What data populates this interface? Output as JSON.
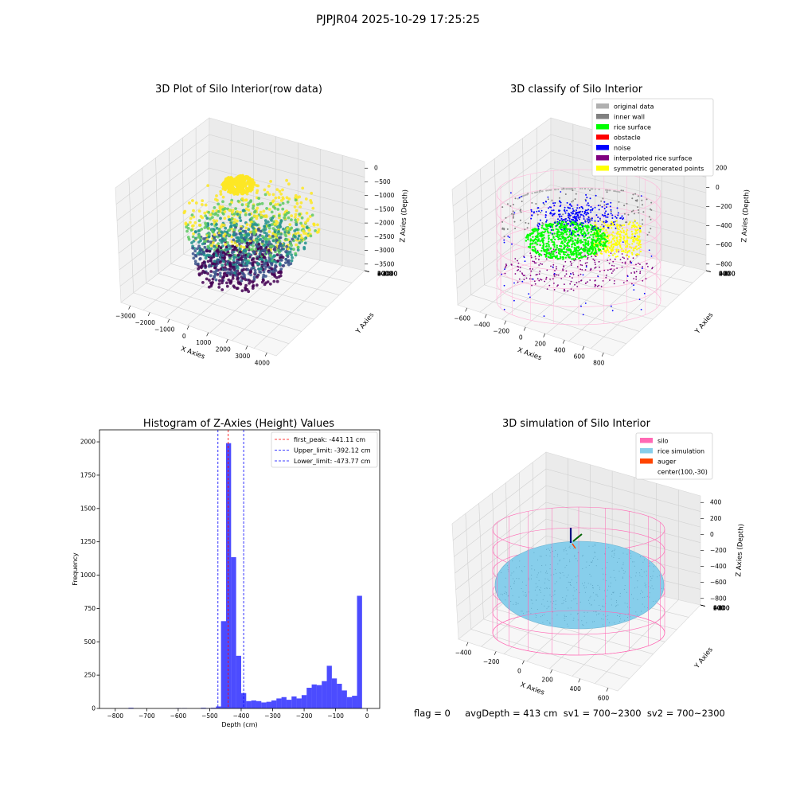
{
  "suptitle": "PJPJR04 2025-10-29 17:25:25",
  "footer_text": "flag = 0     avgDepth = 413 cm  sv1 = 700~2300  sv2 = 700~2300",
  "chart_data": [
    {
      "type": "scatter",
      "projection": "3d",
      "title": "3D Plot of Silo Interior(row data)",
      "xlabel": "X Axies",
      "ylabel": "Y Axies",
      "zlabel": "Z Axies (Depth)",
      "xticks": [
        "−3000",
        "−2000",
        "−1000",
        "0",
        "1000",
        "2000",
        "3000",
        "4000"
      ],
      "yticks": [
        "4000",
        "3000",
        "2000",
        "1000",
        "0",
        "−1000",
        "−2000",
        "−3000",
        "−4000"
      ],
      "zticks": [
        "0",
        "−500",
        "−1000",
        "−1500",
        "−2000",
        "−2500",
        "−3000",
        "−3500"
      ],
      "colormap": "viridis (color by depth)",
      "colors": [
        "#440154",
        "#3b528b",
        "#21918c",
        "#5ec962",
        "#fde725"
      ]
    },
    {
      "type": "scatter",
      "projection": "3d",
      "title": "3D classify of Silo Interior",
      "xlabel": "X Axies",
      "ylabel": "Y Axies",
      "zlabel": "Z Axies (Depth)",
      "xticks": [
        "−600",
        "−400",
        "−200",
        "0",
        "200",
        "400",
        "600",
        "800"
      ],
      "yticks": [
        "600",
        "400",
        "200",
        "0",
        "−200",
        "−400",
        "−600"
      ],
      "zticks": [
        "200",
        "0",
        "−200",
        "−400",
        "−600",
        "−800"
      ],
      "legend_position": "upper-right",
      "legend": [
        {
          "label": "original data",
          "color": "#b0b0b0"
        },
        {
          "label": "inner wall",
          "color": "#808080"
        },
        {
          "label": "rice surface",
          "color": "#00ff00"
        },
        {
          "label": "obstacle",
          "color": "#ff0000"
        },
        {
          "label": "noise",
          "color": "#0000ff"
        },
        {
          "label": "interpolated rice surface",
          "color": "#800080"
        },
        {
          "label": "symmetric generated points",
          "color": "#ffff00"
        }
      ],
      "wireframe_color": "#ffb6d9"
    },
    {
      "type": "bar",
      "title": "Histogram of Z-Axies (Height) Values",
      "xlabel": "Depth (cm)",
      "ylabel": "Frequency",
      "xlim": [
        -850,
        40
      ],
      "ylim": [
        0,
        2090
      ],
      "bin_width": 16,
      "xticks": [
        -800,
        -700,
        -600,
        -500,
        -400,
        -300,
        -200,
        -100,
        0
      ],
      "xtick_labels": [
        "−800",
        "−700",
        "−600",
        "−500",
        "−400",
        "−300",
        "−200",
        "−100",
        "0"
      ],
      "yticks": [
        0,
        250,
        500,
        750,
        1000,
        1250,
        1500,
        1750,
        2000
      ],
      "bar_color": "#0000ff",
      "bins": [
        {
          "x": -750,
          "count": 5
        },
        {
          "x": -600,
          "count": 3
        },
        {
          "x": -580,
          "count": 3
        },
        {
          "x": -520,
          "count": 5
        },
        {
          "x": -504,
          "count": 3
        },
        {
          "x": -488,
          "count": 5
        },
        {
          "x": -472,
          "count": 15
        },
        {
          "x": -456,
          "count": 655
        },
        {
          "x": -440,
          "count": 1990
        },
        {
          "x": -424,
          "count": 1135
        },
        {
          "x": -408,
          "count": 395
        },
        {
          "x": -392,
          "count": 115
        },
        {
          "x": -376,
          "count": 55
        },
        {
          "x": -360,
          "count": 60
        },
        {
          "x": -344,
          "count": 55
        },
        {
          "x": -328,
          "count": 45
        },
        {
          "x": -312,
          "count": 50
        },
        {
          "x": -296,
          "count": 60
        },
        {
          "x": -280,
          "count": 75
        },
        {
          "x": -264,
          "count": 85
        },
        {
          "x": -248,
          "count": 65
        },
        {
          "x": -232,
          "count": 90
        },
        {
          "x": -216,
          "count": 75
        },
        {
          "x": -200,
          "count": 100
        },
        {
          "x": -184,
          "count": 155
        },
        {
          "x": -168,
          "count": 180
        },
        {
          "x": -152,
          "count": 175
        },
        {
          "x": -136,
          "count": 205
        },
        {
          "x": -120,
          "count": 320
        },
        {
          "x": -104,
          "count": 225
        },
        {
          "x": -88,
          "count": 185
        },
        {
          "x": -72,
          "count": 135
        },
        {
          "x": -56,
          "count": 85
        },
        {
          "x": -40,
          "count": 95
        },
        {
          "x": -24,
          "count": 845
        }
      ],
      "vlines": [
        {
          "x": -441.11,
          "color": "#ff0000",
          "label": "first_peak: -441.11 cm"
        },
        {
          "x": -392.12,
          "color": "#0000ff",
          "label": "Upper_limit: -392.12 cm"
        },
        {
          "x": -473.77,
          "color": "#0000ff",
          "label": "Lower_limit: -473.77 cm"
        }
      ],
      "legend_position": "upper-right"
    },
    {
      "type": "scatter",
      "projection": "3d",
      "title": "3D simulation of Silo Interior",
      "xlabel": "X Axies",
      "ylabel": "Y Axies",
      "zlabel": "Z Axies (Depth)",
      "xticks": [
        "−400",
        "−200",
        "0",
        "200",
        "400",
        "600"
      ],
      "yticks": [
        "600",
        "400",
        "200",
        "0",
        "−200",
        "−400",
        "−600"
      ],
      "zticks": [
        "400",
        "200",
        "0",
        "−200",
        "−400",
        "−600",
        "−800"
      ],
      "legend_position": "upper-right",
      "legend": [
        {
          "label": "silo",
          "color": "#ff69b4"
        },
        {
          "label": "rice simulation",
          "color": "#87ceeb"
        },
        {
          "label": "auger",
          "color": "#ff4500"
        },
        {
          "label": "center(100,-30)",
          "color": ""
        }
      ],
      "surface_color": "#87ceeb",
      "wireframe_color": "#ff69b4"
    }
  ]
}
